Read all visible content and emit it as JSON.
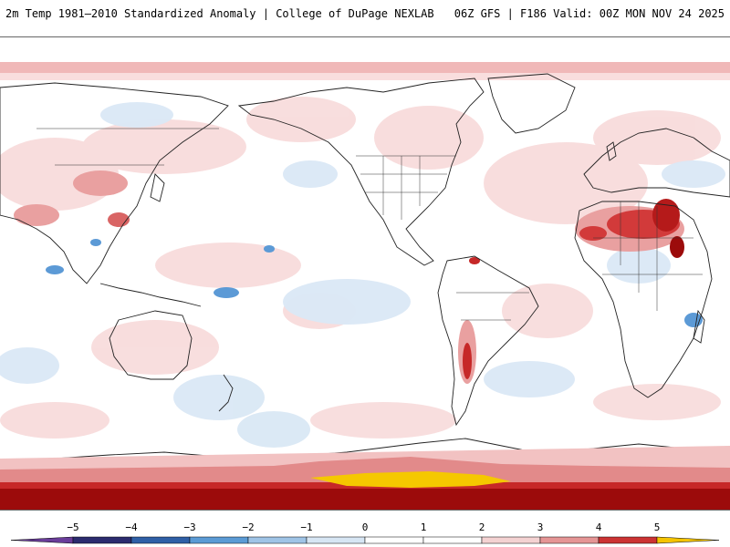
{
  "header": {
    "title": "2m Temp 1981–2010 Standardized Anomaly | College of DuPage NEXLAB",
    "valid": "06Z GFS | F186 Valid: 00Z MON NOV 24 2025"
  },
  "colorbar": {
    "ticks": [
      "−5",
      "−4",
      "−3",
      "−2",
      "−1",
      "0",
      "1",
      "2",
      "3",
      "4",
      "5"
    ],
    "colors": [
      "#2b2b6e",
      "#2f5fa6",
      "#5b9bd5",
      "#9fc4e6",
      "#d7e6f4",
      "#ffffff",
      "#ffffff",
      "#f4d2d2",
      "#e59595",
      "#cc3333",
      "#8b0000"
    ],
    "low_end": "#6a3d9a",
    "high_end": "#f5c400"
  },
  "map": {
    "colors": {
      "land_line": "#222222",
      "light_red": "#f6d3d3",
      "mid_red": "#e9a0a0",
      "red": "#d23a3a",
      "dark_red": "#9c0b0b",
      "light_blue": "#d6e5f3",
      "blue": "#7fb0dd",
      "dark_blue": "#2e74c0",
      "yellow": "#f5c800"
    }
  }
}
